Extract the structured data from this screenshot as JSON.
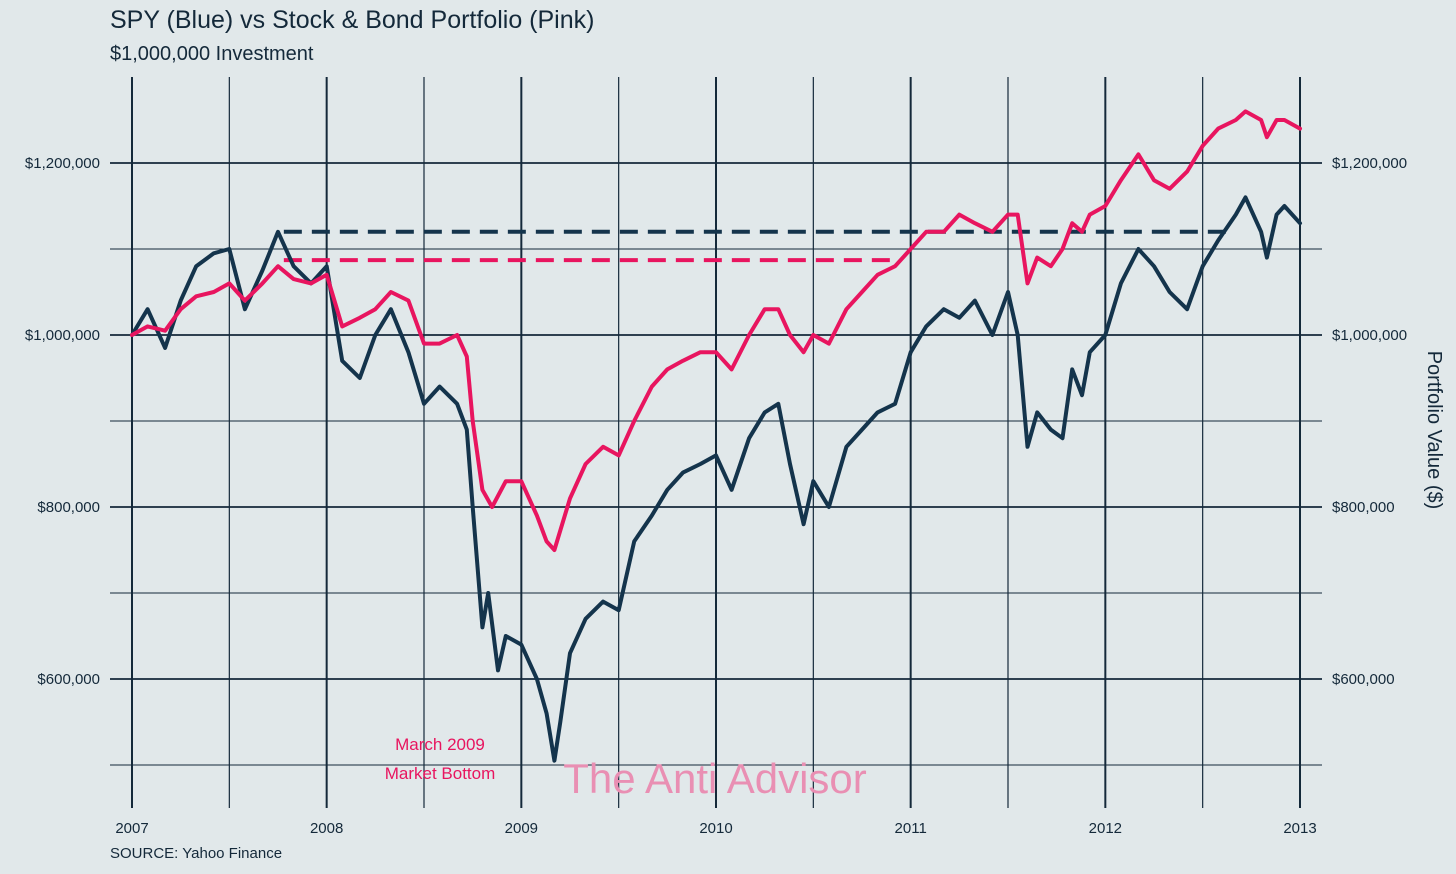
{
  "title": "SPY (Blue) vs Stock & Bond Portfolio (Pink)",
  "subtitle": "$1,000,000 Investment",
  "source": "SOURCE: Yahoo Finance",
  "annotation": [
    "March 2009",
    "Market Bottom"
  ],
  "watermark": "The Anti Advisor",
  "colors": {
    "background": "#e1e8ea",
    "spy": "#14344c",
    "portfolio": "#e8155f",
    "grid": "#14293a"
  },
  "chart_data": {
    "type": "line",
    "title": "SPY (Blue) vs Stock & Bond Portfolio (Pink)",
    "subtitle": "$1,000,000 Investment",
    "xlabel": "",
    "ylabel": "Portfolio Value ($)",
    "xlim": [
      2007.0,
      2013.0
    ],
    "ylim": [
      450000,
      1300000
    ],
    "x_ticks": [
      "2007",
      "2008",
      "2009",
      "2010",
      "2011",
      "2012",
      "2013"
    ],
    "y_ticks": [
      {
        "value": 600000,
        "label": "$600,000"
      },
      {
        "value": 800000,
        "label": "$800,000"
      },
      {
        "value": 1000000,
        "label": "$1,000,000"
      },
      {
        "value": 1200000,
        "label": "$1,200,000"
      }
    ],
    "grid": true,
    "series": [
      {
        "name": "SPY",
        "x": [
          2007.0,
          2007.08,
          2007.17,
          2007.25,
          2007.33,
          2007.42,
          2007.5,
          2007.58,
          2007.67,
          2007.75,
          2007.83,
          2007.92,
          2008.0,
          2008.08,
          2008.17,
          2008.25,
          2008.33,
          2008.42,
          2008.5,
          2008.58,
          2008.67,
          2008.72,
          2008.75,
          2008.8,
          2008.83,
          2008.88,
          2008.92,
          2009.0,
          2009.08,
          2009.13,
          2009.17,
          2009.2,
          2009.25,
          2009.33,
          2009.42,
          2009.5,
          2009.58,
          2009.67,
          2009.75,
          2009.83,
          2009.92,
          2010.0,
          2010.08,
          2010.17,
          2010.25,
          2010.32,
          2010.38,
          2010.45,
          2010.5,
          2010.58,
          2010.67,
          2010.75,
          2010.83,
          2010.92,
          2011.0,
          2011.08,
          2011.17,
          2011.25,
          2011.33,
          2011.42,
          2011.5,
          2011.55,
          2011.6,
          2011.65,
          2011.72,
          2011.78,
          2011.83,
          2011.88,
          2011.92,
          2012.0,
          2012.08,
          2012.17,
          2012.25,
          2012.33,
          2012.42,
          2012.5,
          2012.58,
          2012.67,
          2012.72,
          2012.8,
          2012.83,
          2012.88,
          2012.92,
          2013.0
        ],
        "values": [
          1000000,
          1030000,
          985000,
          1040000,
          1080000,
          1095000,
          1100000,
          1030000,
          1075000,
          1120000,
          1080000,
          1060000,
          1080000,
          970000,
          950000,
          1000000,
          1030000,
          980000,
          920000,
          940000,
          920000,
          890000,
          800000,
          660000,
          700000,
          610000,
          650000,
          640000,
          600000,
          560000,
          505000,
          550000,
          630000,
          670000,
          690000,
          680000,
          760000,
          790000,
          820000,
          840000,
          850000,
          860000,
          820000,
          880000,
          910000,
          920000,
          850000,
          780000,
          830000,
          800000,
          870000,
          890000,
          910000,
          920000,
          980000,
          1010000,
          1030000,
          1020000,
          1040000,
          1000000,
          1050000,
          1000000,
          870000,
          910000,
          890000,
          880000,
          960000,
          930000,
          980000,
          1000000,
          1060000,
          1100000,
          1080000,
          1050000,
          1030000,
          1080000,
          1110000,
          1140000,
          1160000,
          1120000,
          1090000,
          1140000,
          1150000,
          1130000
        ]
      },
      {
        "name": "Portfolio",
        "x": [
          2007.0,
          2007.08,
          2007.17,
          2007.25,
          2007.33,
          2007.42,
          2007.5,
          2007.58,
          2007.67,
          2007.75,
          2007.83,
          2007.92,
          2008.0,
          2008.08,
          2008.17,
          2008.25,
          2008.33,
          2008.42,
          2008.5,
          2008.58,
          2008.67,
          2008.72,
          2008.75,
          2008.8,
          2008.85,
          2008.92,
          2009.0,
          2009.08,
          2009.13,
          2009.17,
          2009.25,
          2009.33,
          2009.42,
          2009.5,
          2009.58,
          2009.67,
          2009.75,
          2009.83,
          2009.92,
          2010.0,
          2010.08,
          2010.17,
          2010.25,
          2010.32,
          2010.38,
          2010.45,
          2010.5,
          2010.58,
          2010.67,
          2010.75,
          2010.83,
          2010.92,
          2011.0,
          2011.08,
          2011.17,
          2011.25,
          2011.33,
          2011.42,
          2011.5,
          2011.55,
          2011.6,
          2011.65,
          2011.72,
          2011.78,
          2011.83,
          2011.88,
          2011.92,
          2012.0,
          2012.08,
          2012.17,
          2012.25,
          2012.33,
          2012.42,
          2012.5,
          2012.58,
          2012.67,
          2012.72,
          2012.8,
          2012.83,
          2012.88,
          2012.92,
          2013.0
        ],
        "values": [
          1000000,
          1010000,
          1005000,
          1030000,
          1045000,
          1050000,
          1060000,
          1040000,
          1060000,
          1080000,
          1065000,
          1060000,
          1070000,
          1010000,
          1020000,
          1030000,
          1050000,
          1040000,
          990000,
          990000,
          1000000,
          975000,
          900000,
          820000,
          800000,
          830000,
          830000,
          790000,
          760000,
          750000,
          810000,
          850000,
          870000,
          860000,
          900000,
          940000,
          960000,
          970000,
          980000,
          980000,
          960000,
          1000000,
          1030000,
          1030000,
          1000000,
          980000,
          1000000,
          990000,
          1030000,
          1050000,
          1070000,
          1080000,
          1100000,
          1120000,
          1120000,
          1140000,
          1130000,
          1120000,
          1140000,
          1140000,
          1060000,
          1090000,
          1080000,
          1100000,
          1130000,
          1120000,
          1140000,
          1150000,
          1180000,
          1210000,
          1180000,
          1170000,
          1190000,
          1220000,
          1240000,
          1250000,
          1260000,
          1250000,
          1230000,
          1250000,
          1250000,
          1240000
        ]
      }
    ],
    "reference_lines": [
      {
        "series": "SPY",
        "value": 1120000,
        "x_start": 2007.78,
        "x_end": 2012.67,
        "style": "dashed"
      },
      {
        "series": "Portfolio",
        "value": 1087000,
        "x_start": 2007.78,
        "x_end": 2010.92,
        "style": "dashed"
      }
    ],
    "annotations": [
      {
        "x": 2008.58,
        "text": [
          "March 2009",
          "Market Bottom"
        ]
      }
    ]
  }
}
